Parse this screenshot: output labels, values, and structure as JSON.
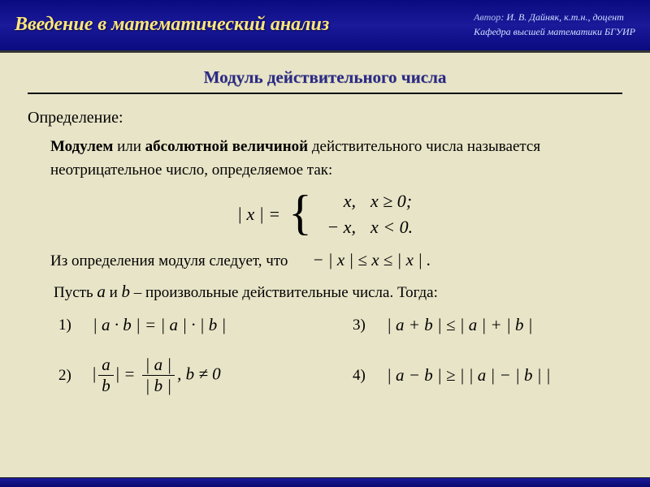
{
  "header": {
    "title": "Введение в математический анализ",
    "author_label": "Автор",
    "author": "И. В. Дайняк,  к.т.н.,  доцент",
    "dept": "Кафедра высшей математики БГУИР"
  },
  "section_title": "Модуль действительного числа",
  "definition": {
    "label": "Определение:",
    "text_pre": "Модулем",
    "text_mid1": " или ",
    "text_bold2": "абсолютной величиной",
    "text_tail": " действительного числа называется неотрицательное число, определяемое так:"
  },
  "abs_def": {
    "lhs": "| x | =",
    "case1_val": "x,",
    "case1_cond": "x ≥ 0;",
    "case2_val": "− x,",
    "case2_cond": "x < 0."
  },
  "corollary": {
    "text": "Из определения модуля следует, что",
    "expr": "− | x | ≤ x ≤ | x | ."
  },
  "let": {
    "pre": "Пусть  ",
    "a": "a",
    "mid1": "  и  ",
    "b": "b",
    "tail": "  –  произвольные действительные числа.  Тогда:"
  },
  "props": {
    "p1_num": "1)",
    "p1_expr": "| a · b | = | a | · | b |",
    "p2_num": "2)",
    "p2_frac_top_l": "a",
    "p2_frac_bot_l": "b",
    "p2_eq": " = ",
    "p2_frac_top_r": "| a |",
    "p2_frac_bot_r": "| b |",
    "p2_cond": ",    b ≠ 0",
    "p3_num": "3)",
    "p3_expr": "| a + b | ≤ | a | + | b |",
    "p4_num": "4)",
    "p4_expr": "| a − b | ≥ | | a | − | b | |"
  },
  "colors": {
    "bg": "#e8e4c7",
    "header_bg": "#0a0a80",
    "title_color": "#ffe77a",
    "meta_color": "#d0e0ff",
    "section_title_color": "#2a2a88"
  }
}
